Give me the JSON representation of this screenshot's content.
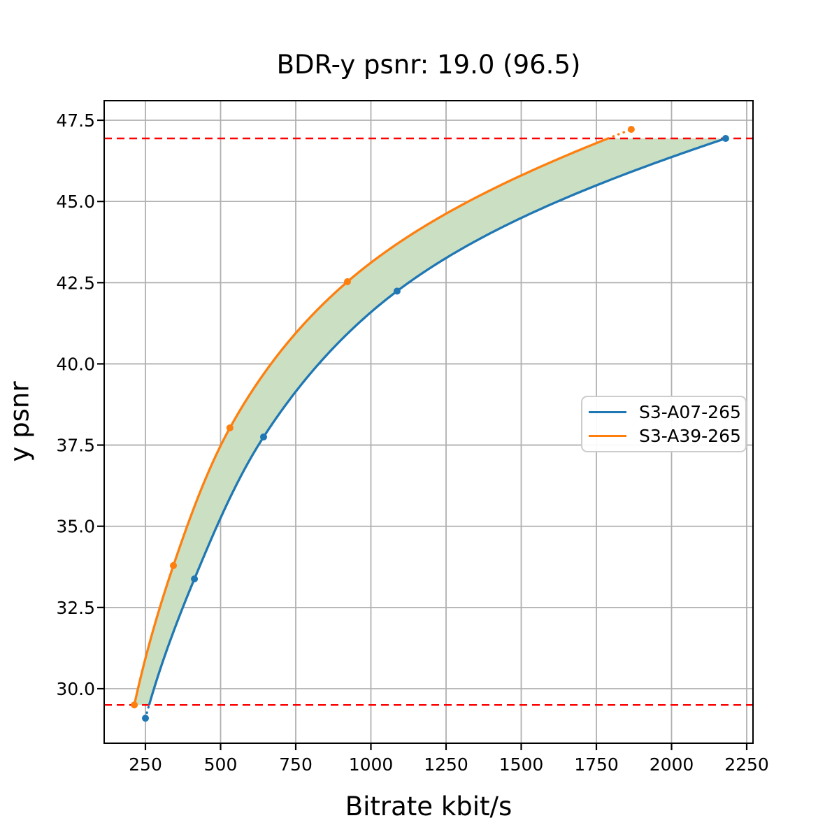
{
  "window": {
    "title": "BDR-y psnr: 19.0 (96.5)"
  },
  "chart_data": {
    "type": "line",
    "title": "BDR-y psnr: 19.0 (96.5)",
    "xlabel": "Bitrate kbit/s",
    "ylabel": "y psnr",
    "grid": true,
    "grid_color": "#b0b0b0",
    "legend_position": "center-right",
    "xlim": [
      113,
      2271
    ],
    "ylim": [
      28.3,
      48.1
    ],
    "x_ticks": [
      250,
      500,
      750,
      1000,
      1250,
      1500,
      1750,
      2000,
      2250
    ],
    "x_tick_labels": [
      "250",
      "500",
      "750",
      "1000",
      "1250",
      "1500",
      "1750",
      "2000",
      "2250"
    ],
    "y_ticks": [
      30.0,
      32.5,
      35.0,
      37.5,
      40.0,
      42.5,
      45.0,
      47.5
    ],
    "y_tick_labels": [
      "30.0",
      "32.5",
      "35.0",
      "37.5",
      "40.0",
      "42.5",
      "45.0",
      "47.5"
    ],
    "series": [
      {
        "name": "S3-A07-265",
        "color": "#1f77b4",
        "points": [
          [
            250,
            29.09
          ],
          [
            413,
            33.38
          ],
          [
            643,
            37.75
          ],
          [
            1087,
            42.24
          ],
          [
            2180,
            46.94
          ]
        ]
      },
      {
        "name": "S3-A39-265",
        "color": "#ff7f0e",
        "points": [
          [
            213,
            29.5
          ],
          [
            343,
            33.79
          ],
          [
            531,
            38.03
          ],
          [
            922,
            42.53
          ],
          [
            1866,
            47.22
          ]
        ]
      }
    ],
    "bound_lines": {
      "upper": 46.94,
      "lower": 29.5,
      "color": "#ff0000",
      "style": "dashed"
    },
    "fill_between": {
      "color": "#cbdfc3"
    }
  }
}
